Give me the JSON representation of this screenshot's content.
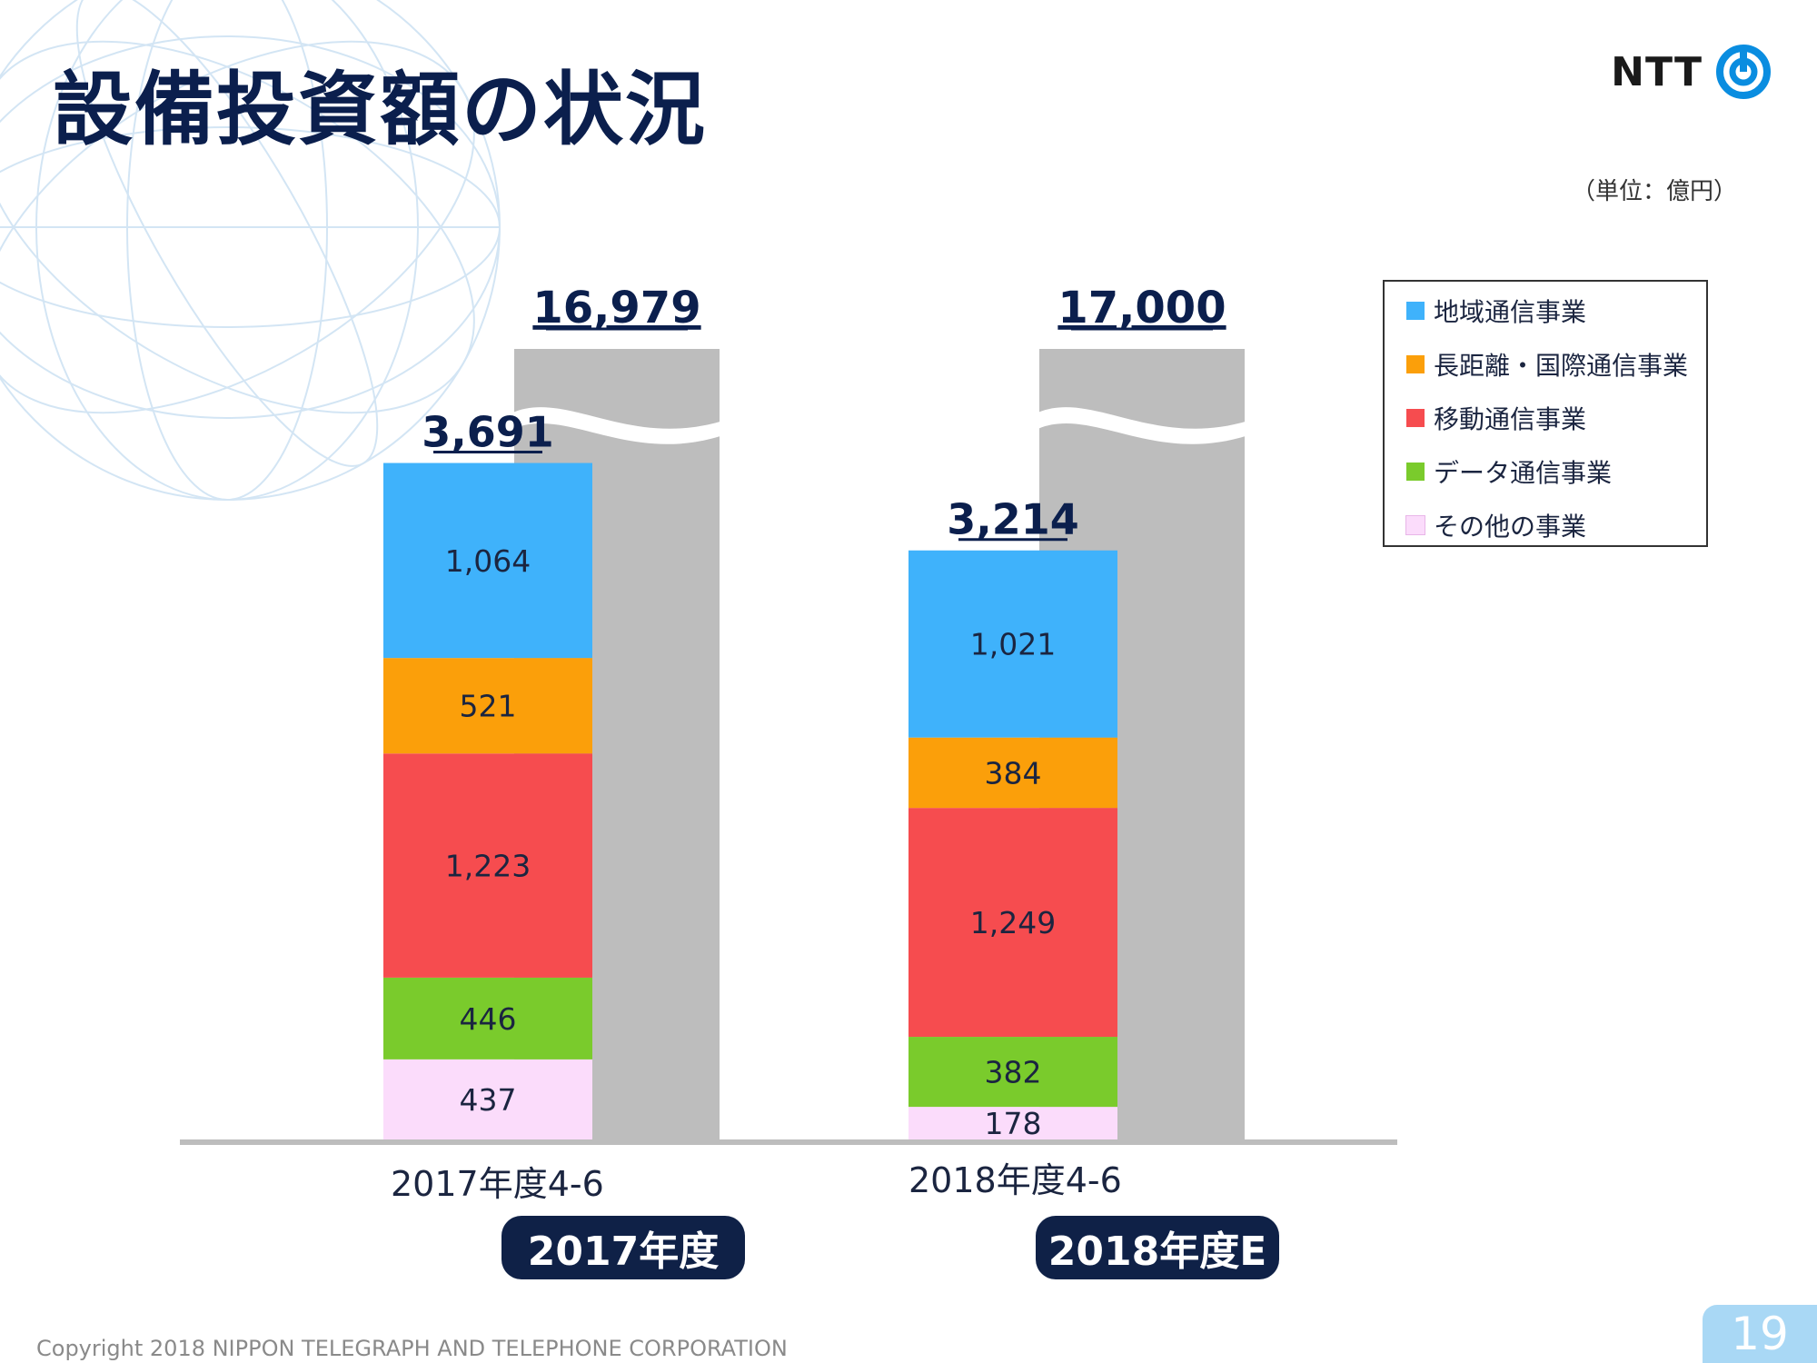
{
  "title": "設備投資額の状況",
  "logo": {
    "text": "NTT",
    "icon": "ntt-logo-icon"
  },
  "unit": "（単位：億円）",
  "colors": {
    "title": "#0b1f4d",
    "regional": "#3fb2fb",
    "long_distance": "#fb9f0a",
    "mobile": "#f64c4f",
    "data": "#7acb2c",
    "other": "#fbdcfb",
    "annual_bar": "#bdbdbd",
    "pill": "#0f2147"
  },
  "chart_data": {
    "type": "bar",
    "stacked": true,
    "categories": [
      "2017年度4-6",
      "2018年度4-6"
    ],
    "series": [
      {
        "name": "地域通信事業",
        "values": [
          1064,
          1021
        ]
      },
      {
        "name": "長距離・国際通信事業",
        "values": [
          521,
          384
        ]
      },
      {
        "name": "移動通信事業",
        "values": [
          1223,
          1249
        ]
      },
      {
        "name": "データ通信事業",
        "values": [
          446,
          382
        ]
      },
      {
        "name": "その他の事業",
        "values": [
          437,
          178
        ]
      }
    ],
    "value_labels": [
      [
        "1,064",
        "521",
        "1,223",
        "446",
        "437"
      ],
      [
        "1,021",
        "384",
        "1,249",
        "382",
        "178"
      ]
    ],
    "totals": [
      "3,691",
      "3,214"
    ],
    "annual": {
      "labels": [
        "2017年度",
        "2018年度E"
      ],
      "values": [
        16979,
        17000
      ],
      "value_labels": [
        "16,979",
        "17,000"
      ],
      "axis_break": true
    }
  },
  "copyright": "Copyright 2018 NIPPON TELEGRAPH AND TELEPHONE CORPORATION",
  "page_number": "19"
}
